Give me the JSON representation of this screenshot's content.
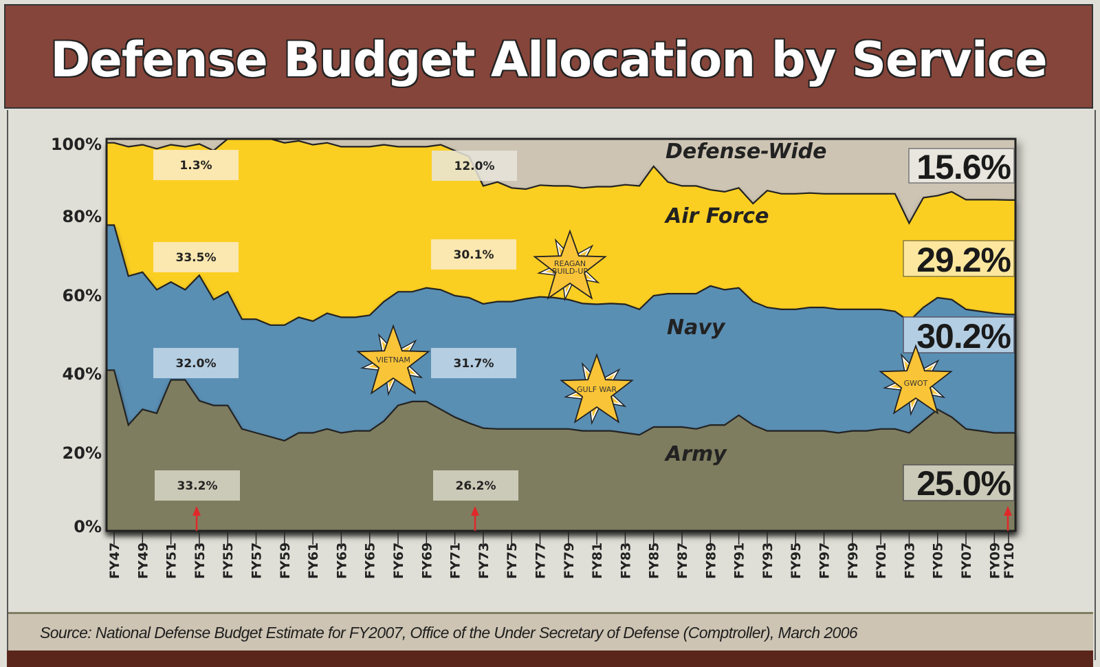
{
  "header": {
    "title": "Defense Budget Allocation by Service"
  },
  "footer": {
    "source": "Source: National Defense Budget Estimate for FY2007, Office of the Under Secretary of Defense (Comptroller), March 2006"
  },
  "colors": {
    "header_bg": "#86453a",
    "army": "#7f7d5f",
    "navy": "#5a8fb4",
    "air_force": "#fbcf24",
    "defense_wide": "#cdc4b3",
    "star": "#f9c437",
    "arrow": "#e0282a"
  },
  "services": {
    "defense_wide": "Defense-Wide",
    "air_force": "Air Force",
    "navy": "Navy",
    "army": "Army"
  },
  "labels": {
    "fy53": {
      "defense_wide": "1.3%",
      "air_force": "33.5%",
      "navy": "32.0%",
      "army": "33.2%"
    },
    "fy73": {
      "defense_wide": "12.0%",
      "air_force": "30.1%",
      "navy": "31.7%",
      "army": "26.2%"
    },
    "fy10": {
      "defense_wide": "15.6%",
      "air_force": "29.2%",
      "navy": "30.2%",
      "army": "25.0%"
    }
  },
  "events": [
    {
      "label": "VIETNAM",
      "year": 1967
    },
    {
      "label": "REAGAN BUILD-UP",
      "line1": "REAGAN",
      "line2": "BUILD-UP",
      "year": 1980
    },
    {
      "label": "GULF WAR",
      "year": 1981
    },
    {
      "label": "GWOT",
      "year": 2004
    }
  ],
  "chart_data": {
    "type": "area",
    "stacked": true,
    "normalized": true,
    "title": "Defense Budget Allocation by Service",
    "xlabel": "",
    "ylabel": "",
    "ylim": [
      0,
      100
    ],
    "yticks": [
      "0%",
      "20%",
      "40%",
      "60%",
      "80%",
      "100%"
    ],
    "xticks": [
      "FY47",
      "FY49",
      "FY51",
      "FY53",
      "FY55",
      "FY57",
      "FY59",
      "FY61",
      "FY63",
      "FY65",
      "FY67",
      "FY69",
      "FY71",
      "FY73",
      "FY75",
      "FY77",
      "FY79",
      "FY81",
      "FY83",
      "FY85",
      "FY87",
      "FY89",
      "FY91",
      "FY93",
      "FY95",
      "FY97",
      "FY99",
      "FY01",
      "FY03",
      "FY05",
      "FY07",
      "FY09",
      "FY10"
    ],
    "x": [
      1947,
      1948,
      1949,
      1950,
      1951,
      1952,
      1953,
      1954,
      1955,
      1956,
      1957,
      1958,
      1959,
      1960,
      1961,
      1962,
      1963,
      1964,
      1965,
      1966,
      1967,
      1968,
      1969,
      1970,
      1971,
      1972,
      1973,
      1974,
      1975,
      1976,
      1977,
      1978,
      1979,
      1980,
      1981,
      1982,
      1983,
      1984,
      1985,
      1986,
      1987,
      1988,
      1989,
      1990,
      1991,
      1992,
      1993,
      1994,
      1995,
      1996,
      1997,
      1998,
      1999,
      2000,
      2001,
      2002,
      2003,
      2004,
      2005,
      2006,
      2007,
      2008,
      2009,
      2010
    ],
    "series": [
      {
        "name": "Army",
        "values": [
          41,
          27,
          31,
          30,
          38.5,
          38.5,
          33.2,
          32,
          32,
          26,
          25,
          24,
          23,
          25,
          25,
          26,
          25,
          25.5,
          25.5,
          28,
          32,
          33,
          33,
          31,
          29,
          27.5,
          26.2,
          26,
          26,
          26,
          26,
          26,
          26,
          25.5,
          25.5,
          25.5,
          25,
          24.5,
          26.5,
          26.5,
          26.5,
          26,
          27,
          27,
          29.5,
          27,
          25.5,
          25.5,
          25.5,
          25.5,
          25.5,
          25,
          25.5,
          25.5,
          26,
          26,
          25,
          28,
          31,
          29,
          26,
          25.5,
          25,
          25
        ]
      },
      {
        "name": "Navy",
        "values": [
          37,
          38,
          35,
          31.5,
          25,
          23,
          32,
          27,
          29,
          28,
          29,
          28.5,
          29.5,
          29.5,
          28.5,
          29.5,
          29.5,
          29,
          29.5,
          30.5,
          29,
          28,
          29,
          30.5,
          31,
          32,
          31.7,
          32.5,
          32.5,
          33.2,
          33.7,
          33.5,
          33,
          32.5,
          32.3,
          32.5,
          32.8,
          32,
          33.5,
          34,
          34,
          34.5,
          35.5,
          34.5,
          32.5,
          31.5,
          31.5,
          31,
          31,
          31.5,
          31.5,
          31.5,
          31,
          31,
          30.5,
          30,
          28.5,
          29,
          28.5,
          30,
          30.5,
          30.5,
          30.5,
          30.2
        ]
      },
      {
        "name": "Air Force",
        "values": [
          21,
          33,
          32.5,
          36,
          35,
          36.5,
          33.5,
          38,
          39,
          46,
          47.5,
          48.5,
          46.5,
          45,
          45,
          43.5,
          43.5,
          43.5,
          43,
          40,
          37,
          37,
          36,
          37,
          37,
          36,
          30.1,
          30.5,
          29,
          28,
          28.5,
          28.5,
          29,
          29.5,
          30,
          29.8,
          30.5,
          31.5,
          33,
          28.5,
          27.5,
          27.5,
          24.5,
          25,
          25.5,
          25,
          29.8,
          29.5,
          29.5,
          29.2,
          29,
          29.5,
          29.5,
          29.5,
          29.5,
          30,
          25,
          28,
          26,
          27.5,
          28,
          28.5,
          29,
          29.2
        ]
      },
      {
        "name": "Defense-Wide",
        "values": [
          1,
          2,
          1.5,
          2.5,
          1.5,
          2,
          1.3,
          3,
          0,
          0,
          0,
          0,
          1,
          0.5,
          1.5,
          1,
          2,
          2,
          2,
          1.5,
          2,
          2,
          2,
          1.5,
          3,
          4.5,
          12,
          11,
          12.5,
          12.8,
          11.8,
          12,
          12,
          12.5,
          12.2,
          12.2,
          11.7,
          12,
          7,
          11,
          12,
          12,
          13,
          13.5,
          12.5,
          16.5,
          13.2,
          14,
          14,
          13.8,
          14,
          14,
          14,
          14,
          14,
          14,
          21.5,
          15,
          14.5,
          13.5,
          15.5,
          15.5,
          15.5,
          15.6
        ]
      }
    ],
    "annotations": [
      {
        "text": "VIETNAM",
        "x": 1967
      },
      {
        "text": "REAGAN BUILD-UP",
        "x": 1980
      },
      {
        "text": "GULF WAR",
        "x": 1981
      },
      {
        "text": "GWOT",
        "x": 2004
      },
      {
        "text": "FY53: Army 33.2%, Navy 32.0%, Air Force 33.5%, Defense-Wide 1.3%",
        "x": 1953
      },
      {
        "text": "FY73: Army 26.2%, Navy 31.7%, Air Force 30.1%, Defense-Wide 12.0%",
        "x": 1973
      },
      {
        "text": "FY10: Army 25.0%, Navy 30.2%, Air Force 29.2%, Defense-Wide 15.6%",
        "x": 2010
      }
    ],
    "grid": false,
    "legend": "inline labels"
  }
}
